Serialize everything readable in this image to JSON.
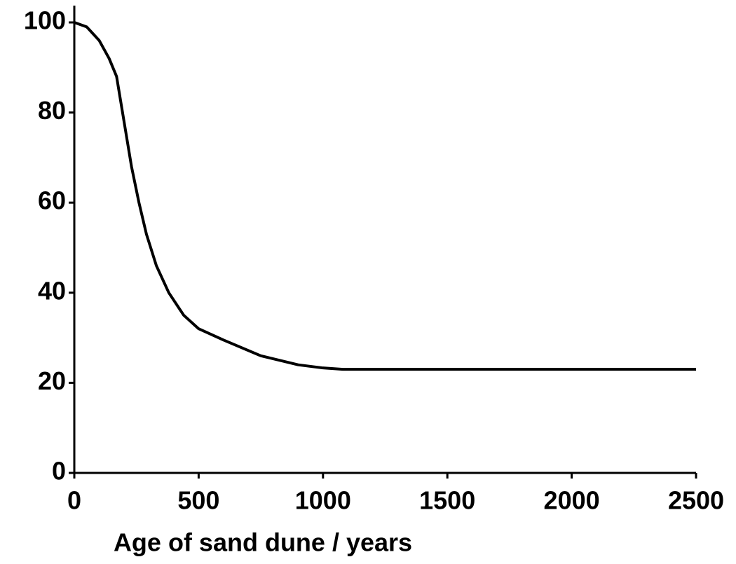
{
  "chart_data": {
    "type": "line",
    "xlabel": "Age of sand dune / years",
    "x": [
      0,
      50,
      100,
      140,
      170,
      200,
      230,
      260,
      290,
      330,
      380,
      440,
      500,
      600,
      750,
      900,
      1000,
      1080,
      1500,
      2000,
      2500
    ],
    "series": [
      {
        "color": "#000000",
        "values": [
          100,
          99,
          96,
          92,
          88,
          78,
          68,
          60,
          53,
          46,
          40,
          35,
          32,
          29.5,
          26,
          24,
          23.3,
          23,
          23,
          23,
          23
        ]
      }
    ],
    "xlim": [
      0,
      2500
    ],
    "xticks": [
      0,
      500,
      1000,
      1500,
      2000,
      2500
    ],
    "ylim": [
      0,
      100
    ],
    "yticks": [
      0,
      20,
      40,
      60,
      80,
      100
    ],
    "grid": false
  }
}
